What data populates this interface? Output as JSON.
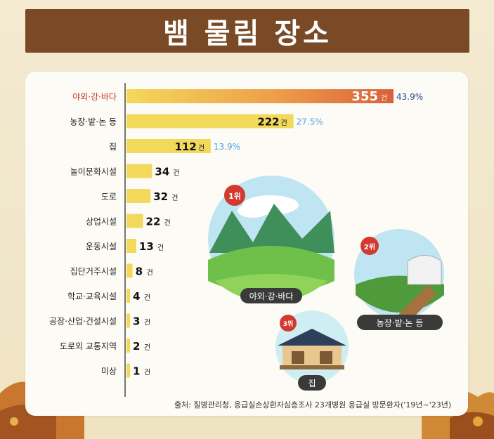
{
  "title": "뱀 물림 장소",
  "source": "출처: 질병관리청, 응급실손상환자심층조사 23개병원 응급실 방문환자('19년~'23년)",
  "colors": {
    "bar": "#f3d95b",
    "top_bar_end": "#d9603b",
    "highlight_label": "#c8352c",
    "pct_top": "#2b4d8c",
    "pct_other": "#4aa3d8",
    "title_bg": "#7a4a26"
  },
  "unit": "건",
  "illustrations": [
    {
      "rank": "1위",
      "caption": "야외·강·바다"
    },
    {
      "rank": "2위",
      "caption": "농장·밭·논 등"
    },
    {
      "rank": "3위",
      "caption": "집"
    }
  ],
  "chart_data": {
    "type": "bar",
    "orientation": "horizontal",
    "categories": [
      "야외·강·바다",
      "농장·밭·논 등",
      "집",
      "놀이문화시설",
      "도로",
      "상업시설",
      "운동시설",
      "집단거주시설",
      "학교·교육시설",
      "공장·산업·건설시설",
      "도로외 교통지역",
      "미상"
    ],
    "values": [
      355,
      222,
      112,
      34,
      32,
      22,
      13,
      8,
      4,
      3,
      2,
      1
    ],
    "percent_labels": [
      "43.9%",
      "27.5%",
      "13.9%",
      "",
      "",
      "",
      "",
      "",
      "",
      "",
      "",
      ""
    ],
    "xlim": [
      0,
      355
    ]
  }
}
